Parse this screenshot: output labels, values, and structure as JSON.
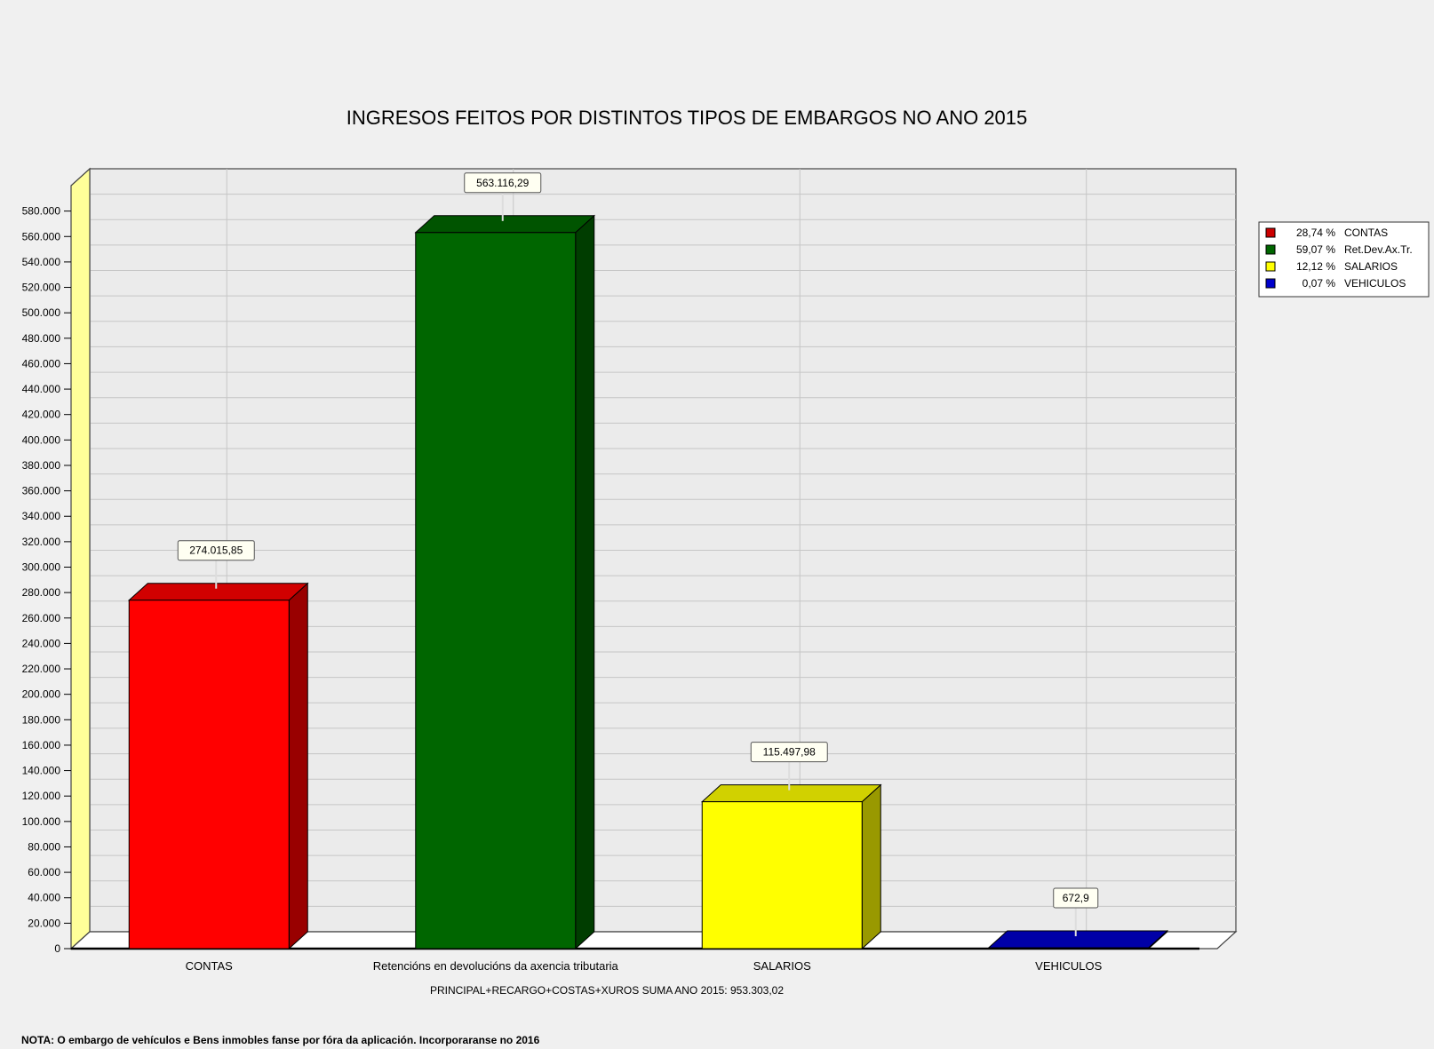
{
  "chart_data": {
    "type": "bar",
    "title": "INGRESOS FEITOS POR DISTINTOS TIPOS DE EMBARGOS NO ANO 2015",
    "categories": [
      "CONTAS",
      "Retencións en devolucións da axencia tributaria",
      "SALARIOS",
      "VEHICULOS"
    ],
    "values": [
      274015.85,
      563116.29,
      115497.98,
      672.9
    ],
    "value_labels": [
      "274.015,85",
      "563.116,29",
      "115.497,98",
      "672,9"
    ],
    "colors": [
      "#ff0000",
      "#006600",
      "#ffff00",
      "#0000cc"
    ],
    "xlabel": "PRINCIPAL+RECARGO+COSTAS+XUROS SUMA ANO 2015: 953.303,02",
    "ylabel": "",
    "ylim": [
      0,
      600000
    ],
    "yticks": [
      0,
      20000,
      40000,
      60000,
      80000,
      100000,
      120000,
      140000,
      160000,
      180000,
      200000,
      220000,
      240000,
      260000,
      280000,
      300000,
      320000,
      340000,
      360000,
      380000,
      400000,
      420000,
      440000,
      460000,
      480000,
      500000,
      520000,
      540000,
      560000,
      580000
    ],
    "ytick_labels": [
      "0",
      "20.000",
      "40.000",
      "60.000",
      "80.000",
      "100.000",
      "120.000",
      "140.000",
      "160.000",
      "180.000",
      "200.000",
      "220.000",
      "240.000",
      "260.000",
      "280.000",
      "300.000",
      "320.000",
      "340.000",
      "360.000",
      "380.000",
      "400.000",
      "420.000",
      "440.000",
      "460.000",
      "480.000",
      "500.000",
      "520.000",
      "540.000",
      "560.000",
      "580.000"
    ],
    "grid": true,
    "legend_position": "right",
    "legend": [
      {
        "pct": "28,74 %",
        "label": "CONTAS",
        "color": "#cc0000"
      },
      {
        "pct": "59,07 %",
        "label": "Ret.Dev.Ax.Tr.",
        "color": "#006600"
      },
      {
        "pct": "12,12 %",
        "label": "SALARIOS",
        "color": "#ffff00"
      },
      {
        "pct": "0,07 %",
        "label": "VEHICULOS",
        "color": "#0000cc"
      }
    ]
  },
  "note": "NOTA: O embargo de vehículos e Bens inmobles fanse por fóra da aplicación. Incorporaranse no 2016"
}
